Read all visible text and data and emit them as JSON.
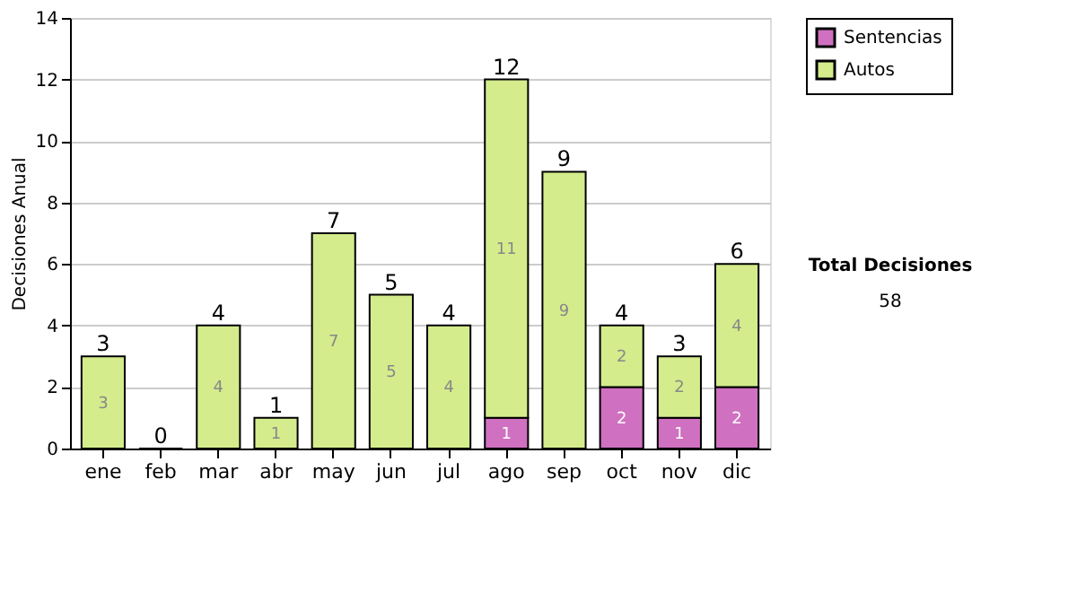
{
  "chart_data": {
    "type": "bar",
    "stacked": true,
    "ylabel": "Decisiones Anual",
    "categories": [
      "ene",
      "feb",
      "mar",
      "abr",
      "may",
      "jun",
      "jul",
      "ago",
      "sep",
      "oct",
      "nov",
      "dic"
    ],
    "series": [
      {
        "name": "Sentencias",
        "color": "#d070c0",
        "values": [
          0,
          0,
          0,
          0,
          0,
          0,
          0,
          1,
          0,
          2,
          1,
          2
        ],
        "value_labels": [
          null,
          null,
          null,
          null,
          null,
          null,
          null,
          "1",
          null,
          "2",
          "1",
          "2"
        ]
      },
      {
        "name": "Autos",
        "color": "#d4ec8c",
        "values": [
          3,
          0,
          4,
          1,
          7,
          5,
          4,
          11,
          9,
          2,
          2,
          4
        ],
        "value_labels": [
          "3",
          null,
          "4",
          "1",
          "7",
          "5",
          "4",
          "11",
          "9",
          "2",
          "2",
          "4"
        ]
      }
    ],
    "totals": [
      "3",
      "0",
      "4",
      "1",
      "7",
      "5",
      "4",
      "12",
      "9",
      "4",
      "3",
      "6"
    ],
    "ylim": [
      0,
      14
    ],
    "yticks": [
      0,
      2,
      4,
      6,
      8,
      10,
      12,
      14
    ],
    "grid": "y",
    "legend": "right",
    "annotations": [
      "Total Decisiones",
      "58"
    ]
  }
}
